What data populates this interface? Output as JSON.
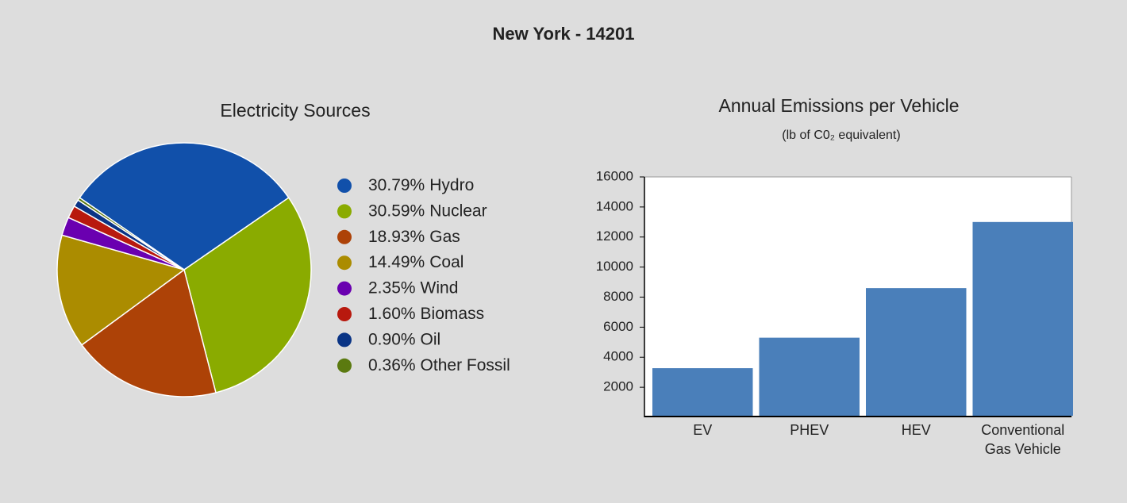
{
  "title": "New York - 14201",
  "chart_data": [
    {
      "type": "pie",
      "title": "Electricity Sources",
      "categories": [
        "Hydro",
        "Nuclear",
        "Gas",
        "Coal",
        "Wind",
        "Biomass",
        "Oil",
        "Other Fossil"
      ],
      "values": [
        30.79,
        30.59,
        18.93,
        14.49,
        2.35,
        1.6,
        0.9,
        0.36
      ],
      "value_labels": [
        "30.79%",
        "30.59%",
        "18.93%",
        "14.49%",
        "2.35%",
        "1.60%",
        "0.90%",
        "0.36%"
      ],
      "colors": [
        "#1150aa",
        "#8aab00",
        "#ad4207",
        "#ab8c00",
        "#6a00b0",
        "#b8190e",
        "#0a3485",
        "#5b7a10"
      ],
      "legend": "right"
    },
    {
      "type": "bar",
      "title": "Annual Emissions per Vehicle",
      "subtitle": "(lb of C0₂ equivalent)",
      "categories": [
        "EV",
        "PHEV",
        "HEV",
        "Conventional Gas Vehicle"
      ],
      "values": [
        3270,
        5300,
        8600,
        13000
      ],
      "color": "#4a7fba",
      "ylim": [
        0,
        16000
      ],
      "yticks": [
        2000,
        4000,
        6000,
        8000,
        10000,
        12000,
        14000,
        16000
      ]
    }
  ]
}
